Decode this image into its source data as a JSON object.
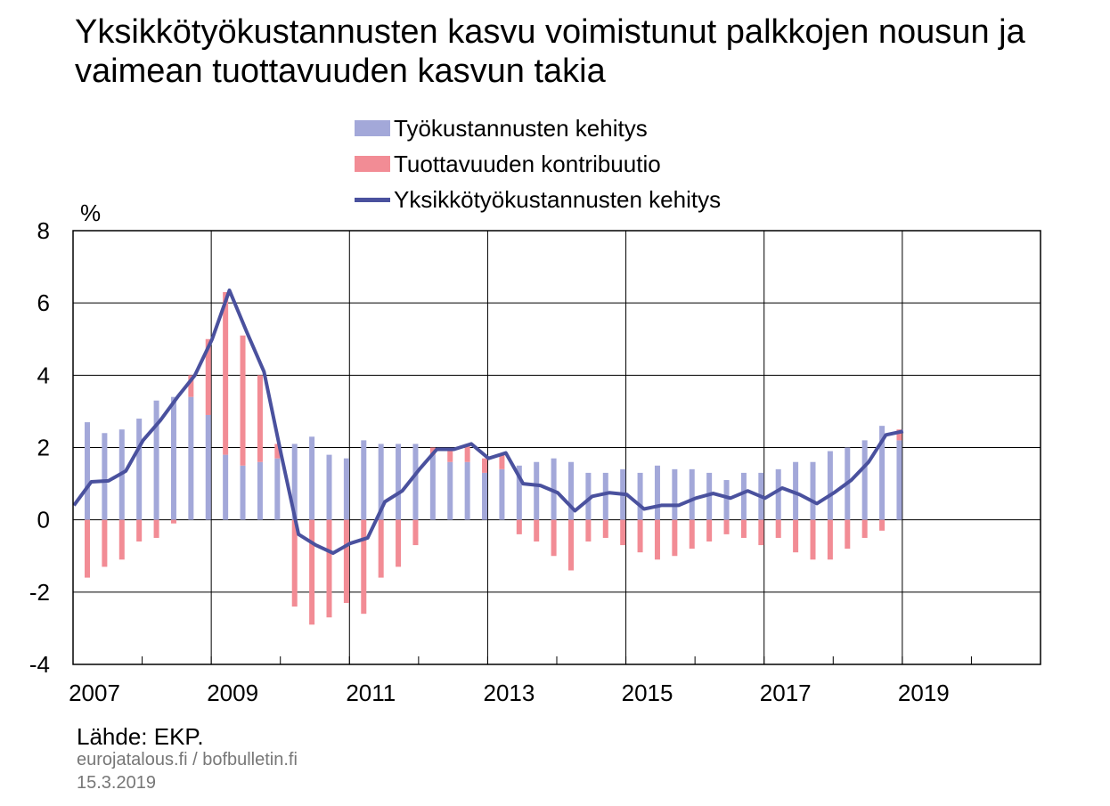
{
  "title": "Yksikkötyökustannusten kasvu voimistunut palkkojen nousun ja vaimean tuottavuuden kasvun takia",
  "unit_label": "%",
  "source": "Lähde: EKP.",
  "site": "eurojatalous.fi  / bofbulletin.fi",
  "date": "15.3.2019",
  "colors": {
    "labour": "#a3a8d9",
    "productivity": "#f28c95",
    "ulc": "#4a519e",
    "grid": "#000000"
  },
  "chart_data": {
    "type": "bar",
    "title": "Yksikkötyökustannusten kasvu voimistunut palkkojen nousun ja vaimean tuottavuuden kasvun takia",
    "ylabel": "%",
    "ylim": [
      -4,
      8
    ],
    "yticks": [
      -4,
      -2,
      0,
      2,
      4,
      6,
      8
    ],
    "xlim": [
      2007,
      2021
    ],
    "x_tick_labels": [
      "2007",
      "2009",
      "2011",
      "2013",
      "2015",
      "2017",
      "2019"
    ],
    "legend": [
      "Työkustannusten kehitys",
      "Tuottavuuden kontribuutio",
      "Yksikkötyökustannusten kehitys"
    ],
    "legend_position": "top-center",
    "grid": true,
    "x": [
      2007.0,
      2007.25,
      2007.5,
      2007.75,
      2008.0,
      2008.25,
      2008.5,
      2008.75,
      2009.0,
      2009.25,
      2009.5,
      2009.75,
      2010.0,
      2010.25,
      2010.5,
      2010.75,
      2011.0,
      2011.25,
      2011.5,
      2011.75,
      2012.0,
      2012.25,
      2012.5,
      2012.75,
      2013.0,
      2013.25,
      2013.5,
      2013.75,
      2014.0,
      2014.25,
      2014.5,
      2014.75,
      2015.0,
      2015.25,
      2015.5,
      2015.75,
      2016.0,
      2016.25,
      2016.5,
      2016.75,
      2017.0,
      2017.25,
      2017.5,
      2017.75,
      2018.0,
      2018.25,
      2018.5,
      2018.75
    ],
    "series": [
      {
        "name": "Työkustannusten kehitys",
        "kind": "bar",
        "values": [
          2.7,
          2.4,
          2.5,
          2.8,
          3.3,
          3.4,
          3.4,
          2.9,
          1.8,
          1.5,
          1.6,
          1.7,
          2.1,
          2.3,
          1.8,
          1.7,
          2.2,
          2.1,
          2.1,
          2.1,
          1.8,
          1.6,
          1.6,
          1.3,
          1.4,
          1.5,
          1.6,
          1.7,
          1.6,
          1.3,
          1.3,
          1.4,
          1.3,
          1.5,
          1.4,
          1.4,
          1.3,
          1.1,
          1.3,
          1.3,
          1.4,
          1.6,
          1.6,
          1.9,
          2.0,
          2.2,
          2.6,
          2.2
        ]
      },
      {
        "name": "Tuottavuuden kontribuutio",
        "kind": "bar",
        "values": [
          -1.6,
          -1.3,
          -1.1,
          -0.6,
          -0.5,
          -0.1,
          0.6,
          2.1,
          4.5,
          3.6,
          2.4,
          0.4,
          -2.4,
          -2.9,
          -2.7,
          -2.3,
          -2.6,
          -1.6,
          -1.3,
          -0.7,
          0.2,
          0.4,
          0.5,
          0.4,
          0.4,
          -0.4,
          -0.6,
          -1.0,
          -1.4,
          -0.6,
          -0.5,
          -0.7,
          -0.9,
          -1.1,
          -1.0,
          -0.8,
          -0.6,
          -0.4,
          -0.5,
          -0.7,
          -0.5,
          -0.9,
          -1.1,
          -1.1,
          -0.8,
          -0.5,
          -0.3,
          0.3
        ]
      },
      {
        "name": "Yksikkötyökustannusten kehitys",
        "kind": "line",
        "x": [
          2007.0,
          2007.25,
          2007.5,
          2007.75,
          2008.0,
          2008.25,
          2008.5,
          2008.75,
          2009.0,
          2009.25,
          2009.5,
          2009.75,
          2010.0,
          2010.25,
          2010.5,
          2010.75,
          2011.0,
          2011.25,
          2011.5,
          2011.75,
          2012.0,
          2012.25,
          2012.5,
          2012.75,
          2013.0,
          2013.25,
          2013.5,
          2013.75,
          2014.0,
          2014.25,
          2014.5,
          2014.75,
          2015.0,
          2015.25,
          2015.5,
          2015.75,
          2016.0,
          2016.25,
          2016.5,
          2016.75,
          2017.0,
          2017.25,
          2017.5,
          2017.75,
          2018.0,
          2018.25,
          2018.5,
          2018.75,
          2019.0
        ],
        "values": [
          0.4,
          1.05,
          1.08,
          1.35,
          2.2,
          2.75,
          3.4,
          4.0,
          5.0,
          6.35,
          5.2,
          4.1,
          1.8,
          -0.4,
          -0.7,
          -0.92,
          -0.65,
          -0.5,
          0.5,
          0.8,
          1.4,
          1.95,
          1.95,
          2.1,
          1.7,
          1.85,
          1.0,
          0.95,
          0.75,
          0.25,
          0.65,
          0.75,
          0.7,
          0.3,
          0.4,
          0.4,
          0.6,
          0.73,
          0.6,
          0.8,
          0.6,
          0.88,
          0.7,
          0.45,
          0.75,
          1.1,
          1.6,
          2.35,
          2.45
        ]
      }
    ]
  }
}
